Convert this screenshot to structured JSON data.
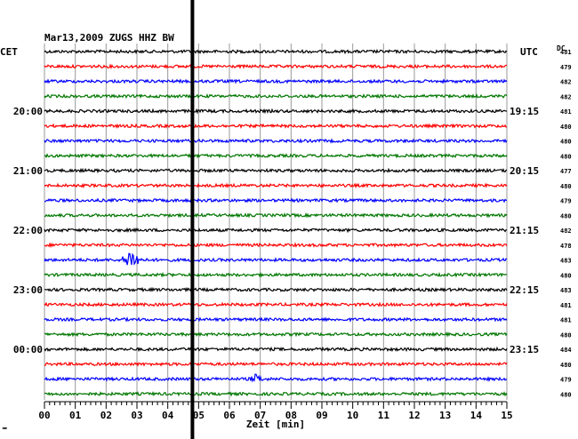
{
  "chart_data": {
    "type": "line",
    "title": "Mar13,2009   ZUGS HHZ BW",
    "xlabel": "Zeit [min]",
    "left_tz": "CET",
    "right_tz": "UTC",
    "dc_label": "DC",
    "x_ticks": [
      "00",
      "01",
      "02",
      "03",
      "04",
      "05",
      "06",
      "07",
      "08",
      "09",
      "10",
      "11",
      "12",
      "13",
      "14",
      "15"
    ],
    "xlim": [
      0,
      15
    ],
    "line_interval_min": 15,
    "colors": [
      "#000000",
      "#ff0000",
      "#0000ff",
      "#007700"
    ],
    "left_time_labels": [
      {
        "row": 4,
        "text": "20:00"
      },
      {
        "row": 8,
        "text": "21:00"
      },
      {
        "row": 12,
        "text": "22:00"
      },
      {
        "row": 16,
        "text": "23:00"
      },
      {
        "row": 20,
        "text": "00:00"
      }
    ],
    "right_time_labels": [
      {
        "row": 4,
        "text": "19:15"
      },
      {
        "row": 8,
        "text": "20:15"
      },
      {
        "row": 12,
        "text": "21:15"
      },
      {
        "row": 16,
        "text": "22:15"
      },
      {
        "row": 20,
        "text": "23:15"
      }
    ],
    "dc_values": [
      "481",
      "479",
      "482",
      "482",
      "481",
      "480",
      "480",
      "480",
      "477",
      "480",
      "479",
      "480",
      "482",
      "478",
      "483",
      "480",
      "483",
      "481",
      "481",
      "480",
      "484",
      "480",
      "479",
      "480"
    ],
    "noise_level": 1.6,
    "events": [
      {
        "row": 14,
        "start_min": 2.4,
        "end_min": 3.2,
        "peak_amplitude": 9
      },
      {
        "row": 22,
        "start_min": 6.6,
        "end_min": 7.1,
        "peak_amplitude": 4
      }
    ],
    "marker_time_min": 4.8
  },
  "footer": {
    "corner_mark": "℠"
  }
}
